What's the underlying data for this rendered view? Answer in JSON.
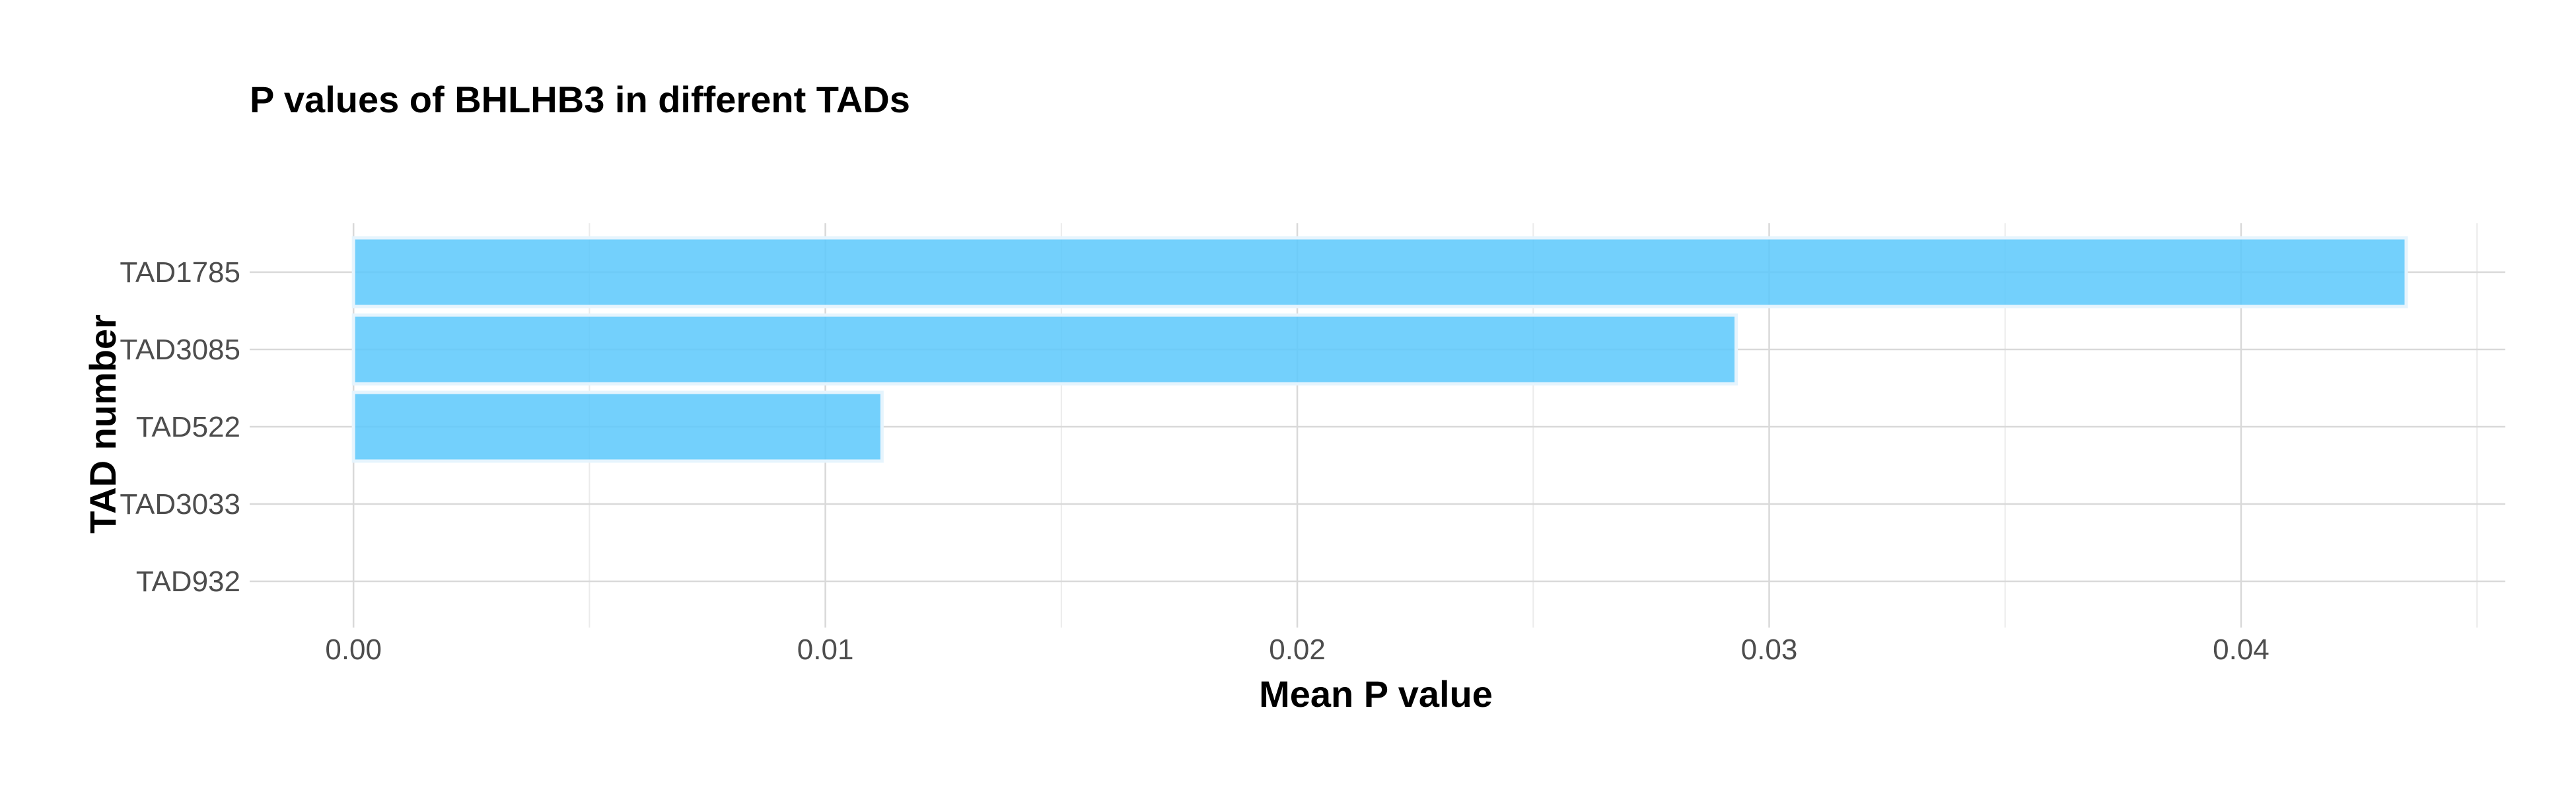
{
  "chart_data": {
    "type": "bar",
    "orientation": "horizontal",
    "title": "P values of BHLHB3 in different TADs",
    "xlabel": "Mean P value",
    "ylabel": "TAD number",
    "categories": [
      "TAD1785",
      "TAD3085",
      "TAD522",
      "TAD3033",
      "TAD932"
    ],
    "values": [
      0.0435,
      0.0293,
      0.0112,
      0.0,
      0.0
    ],
    "xlim": [
      -0.0022,
      0.0456
    ],
    "x_ticks": [
      0.0,
      0.01,
      0.02,
      0.03,
      0.04
    ],
    "x_tick_labels": [
      "0.00",
      "0.01",
      "0.02",
      "0.03",
      "0.04"
    ],
    "grid": true,
    "bar_color": "#5bc8fb",
    "bar_outline_color": "#e6f4fd",
    "grid_major_color": "#d9d9d9",
    "grid_minor_color": "#ebebeb"
  }
}
